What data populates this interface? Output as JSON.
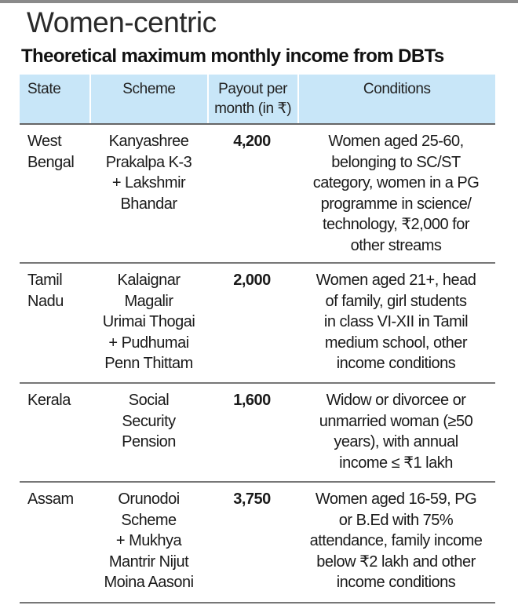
{
  "title": "Women-centric",
  "subtitle": "Theoretical maximum monthly income from DBTs",
  "chart_data": {
    "type": "table",
    "title": "Theoretical maximum monthly income from DBTs",
    "columns": [
      "State",
      "Scheme",
      "Payout per\nmonth (in ₹)",
      "Conditions"
    ],
    "rows": [
      {
        "state": "West\nBengal",
        "scheme": "Kanyashree\nPrakalpa K-3\n+ Lakshmir\nBhandar",
        "payout": "4,200",
        "conditions": "Women aged 25-60,\nbelonging to SC/ST\ncategory, women in a PG\nprogramme in science/\ntechnology, ₹2,000 for\nother streams"
      },
      {
        "state": "Tamil\nNadu",
        "scheme": "Kalaignar\nMagalir\nUrimai Thogai\n+ Pudhumai\nPenn Thittam",
        "payout": "2,000",
        "conditions": "Women aged 21+, head\nof family, girl students\nin class VI-XII in Tamil\nmedium school, other\nincome conditions"
      },
      {
        "state": "Kerala",
        "scheme": "Social\nSecurity\nPension",
        "payout": "1,600",
        "conditions": "Widow or divorcee or\nunmarried woman (≥50\nyears), with annual\nincome ≤ ₹1 lakh"
      },
      {
        "state": "Assam",
        "scheme": "Orunodoi\nScheme\n+ Mukhya\nMantrir Nijut\nMoina Aasoni",
        "payout": "3,750",
        "conditions": "Women aged 16-59, PG\nor B.Ed with 75%\nattendance, family income\nbelow ₹2 lakh and other\nincome conditions"
      }
    ]
  }
}
